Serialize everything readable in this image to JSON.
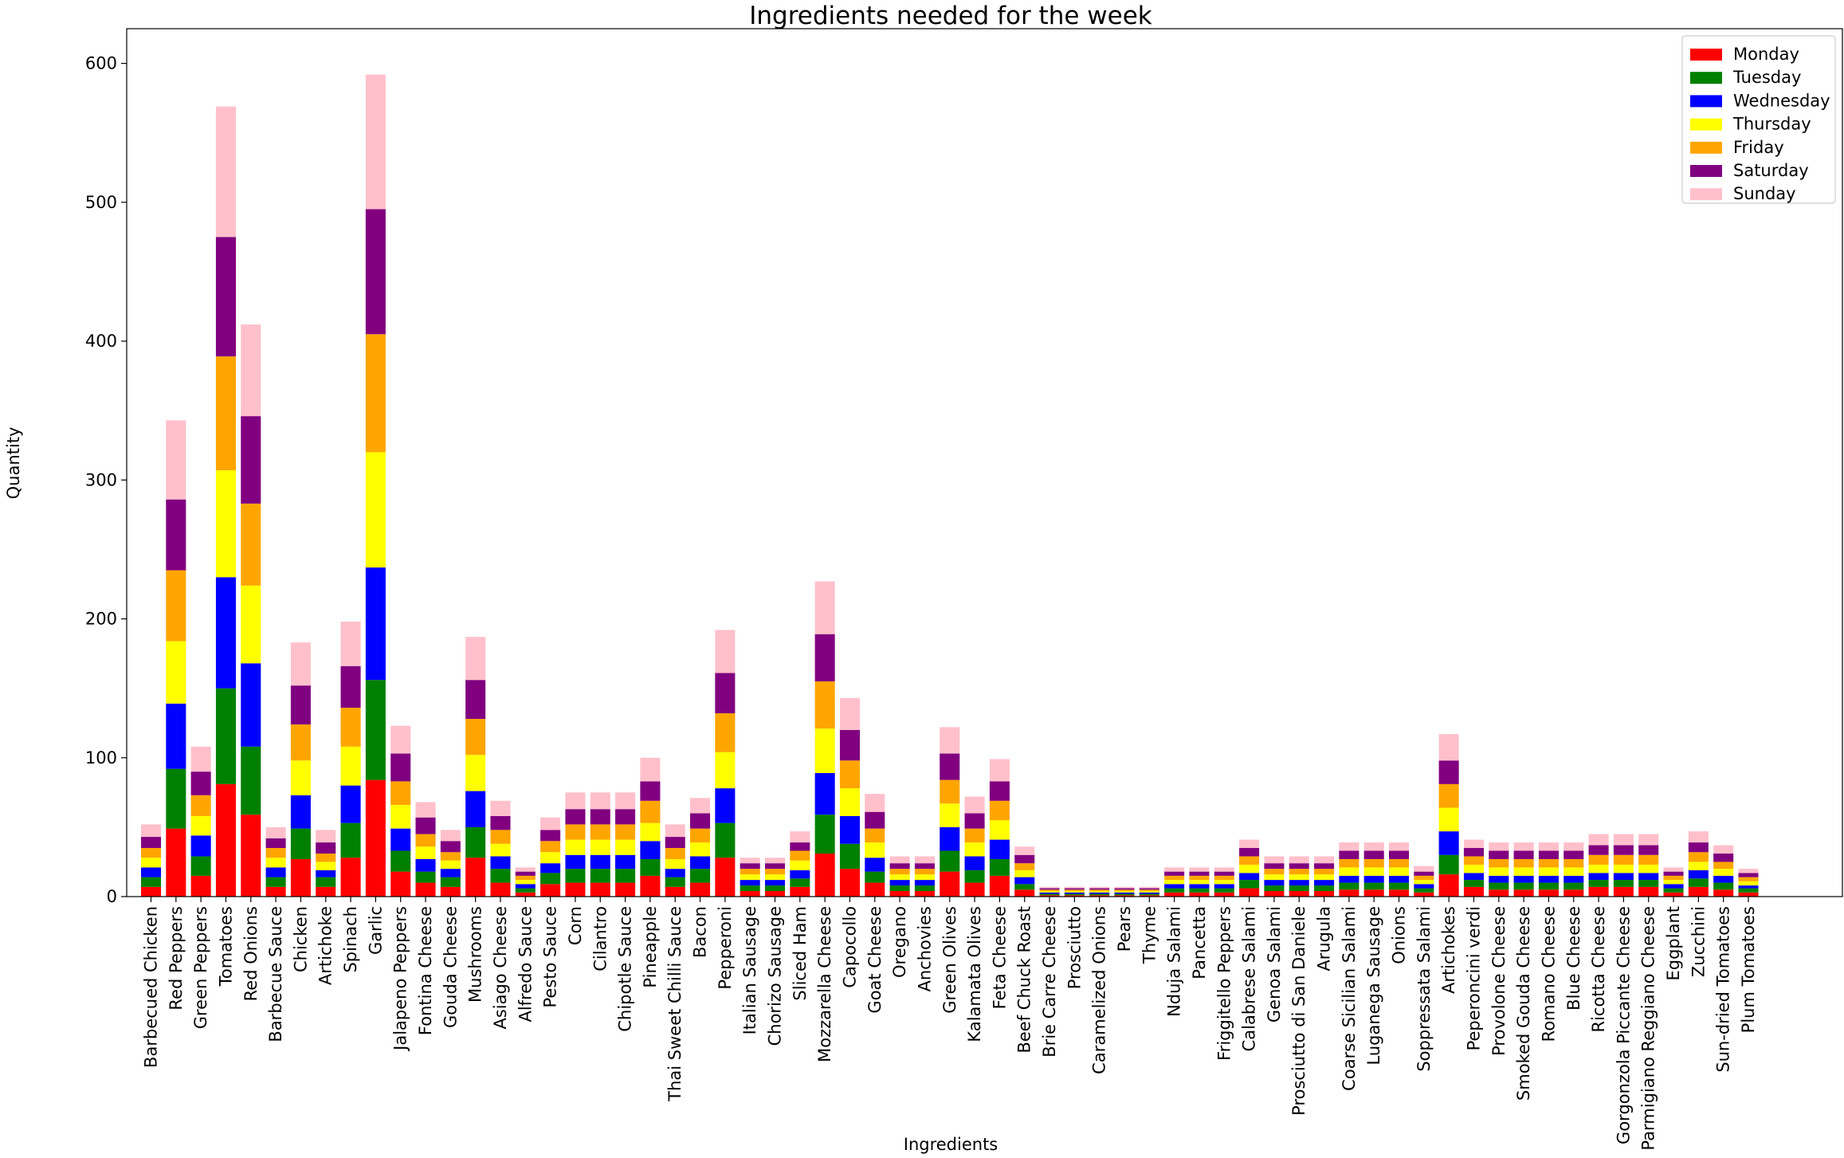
{
  "chart_data": {
    "type": "bar",
    "stacked": true,
    "title": "Ingredients needed for the week",
    "xlabel": "Ingredients",
    "ylabel": "Quantity",
    "ylim": [
      0,
      625
    ],
    "yticks": [
      0,
      100,
      200,
      300,
      400,
      500,
      600
    ],
    "grid": false,
    "legend_position": "top-right",
    "categories": [
      "Barbecued Chicken",
      "Red Peppers",
      "Green Peppers",
      "Tomatoes",
      "Red Onions",
      "Barbecue Sauce",
      "Chicken",
      "Artichoke",
      "Spinach",
      "Garlic",
      "Jalapeno Peppers",
      "Fontina Cheese",
      "Gouda Cheese",
      "Mushrooms",
      "Asiago Cheese",
      "Alfredo Sauce",
      "Pesto Sauce",
      "Corn",
      "Cilantro",
      "Chipotle Sauce",
      "Pineapple",
      "Thai Sweet Chilli Sauce",
      "Bacon",
      "Pepperoni",
      "Italian Sausage",
      "Chorizo Sausage",
      "Sliced Ham",
      "Mozzarella Cheese",
      "Capocollo",
      "Goat Cheese",
      "Oregano",
      "Anchovies",
      "Green Olives",
      "Kalamata Olives",
      "Feta Cheese",
      "Beef Chuck Roast",
      "Brie Carre Cheese",
      "Prosciutto",
      "Caramelized Onions",
      "Pears",
      "Thyme",
      "Nduja Salami",
      "Pancetta",
      "Friggitello Peppers",
      "Calabrese Salami",
      "Genoa Salami",
      "Prosciutto di San Daniele",
      "Arugula",
      "Coarse Sicilian Salami",
      "Luganega Sausage",
      "Onions",
      "Soppressata Salami",
      "Artichokes",
      "Peperoncini verdi",
      "Provolone Cheese",
      "Smoked Gouda Cheese",
      "Romano Cheese",
      "Blue Cheese",
      "Ricotta Cheese",
      "Gorgonzola Piccante Cheese",
      "Parmigiano Reggiano Cheese",
      "Eggplant",
      "Zucchini",
      "Sun-dried Tomatoes",
      "Plum Tomatoes"
    ],
    "series": [
      {
        "name": "Monday",
        "color": "#ff0000",
        "values": [
          7,
          49,
          15,
          81,
          59,
          7,
          27,
          7,
          28,
          84,
          18,
          10,
          7,
          28,
          10,
          3,
          9,
          10,
          10,
          10,
          15,
          7,
          10,
          28,
          4,
          4,
          7,
          31,
          20,
          10,
          4,
          4,
          18,
          10,
          15,
          5,
          1,
          1,
          1,
          1,
          1,
          3,
          3,
          3,
          6,
          4,
          4,
          4,
          5,
          5,
          5,
          3,
          16,
          7,
          5,
          5,
          5,
          5,
          7,
          7,
          7,
          3,
          7,
          5,
          3
        ]
      },
      {
        "name": "Tuesday",
        "color": "#008000",
        "values": [
          7,
          43,
          14,
          69,
          49,
          7,
          22,
          7,
          25,
          72,
          15,
          8,
          7,
          22,
          10,
          3,
          8,
          10,
          10,
          10,
          12,
          7,
          10,
          25,
          4,
          4,
          6,
          28,
          18,
          8,
          4,
          4,
          15,
          9,
          12,
          4,
          1,
          1,
          1,
          1,
          1,
          3,
          3,
          3,
          6,
          4,
          4,
          4,
          5,
          5,
          5,
          3,
          14,
          5,
          5,
          5,
          5,
          5,
          5,
          5,
          5,
          3,
          6,
          5,
          3
        ]
      },
      {
        "name": "Wednesday",
        "color": "#0000ff",
        "values": [
          7,
          47,
          15,
          80,
          60,
          7,
          24,
          5,
          27,
          81,
          16,
          9,
          6,
          26,
          9,
          3,
          7,
          10,
          10,
          10,
          13,
          6,
          9,
          25,
          4,
          4,
          6,
          30,
          20,
          10,
          4,
          4,
          17,
          10,
          14,
          5,
          1,
          1,
          1,
          1,
          1,
          3,
          3,
          3,
          5,
          4,
          4,
          4,
          5,
          5,
          5,
          3,
          17,
          5,
          5,
          5,
          5,
          5,
          5,
          5,
          5,
          3,
          6,
          5,
          2
        ]
      },
      {
        "name": "Thursday",
        "color": "#ffff00",
        "values": [
          7,
          45,
          14,
          77,
          56,
          7,
          25,
          6,
          28,
          83,
          17,
          9,
          6,
          26,
          9,
          3,
          8,
          11,
          11,
          11,
          13,
          7,
          10,
          26,
          4,
          4,
          7,
          32,
          20,
          11,
          4,
          4,
          17,
          10,
          14,
          5,
          1,
          1,
          1,
          1,
          1,
          3,
          3,
          3,
          6,
          4,
          4,
          4,
          6,
          6,
          6,
          3,
          17,
          6,
          6,
          6,
          6,
          6,
          6,
          6,
          6,
          3,
          6,
          5,
          3
        ]
      },
      {
        "name": "Friday",
        "color": "#ffa500",
        "values": [
          7,
          51,
          15,
          82,
          59,
          7,
          26,
          6,
          28,
          85,
          17,
          9,
          6,
          26,
          10,
          3,
          8,
          11,
          11,
          11,
          16,
          8,
          10,
          28,
          4,
          4,
          7,
          34,
          20,
          10,
          4,
          4,
          17,
          10,
          14,
          5,
          1,
          1,
          1,
          1,
          1,
          3,
          3,
          3,
          6,
          4,
          4,
          4,
          6,
          6,
          6,
          3,
          17,
          6,
          6,
          6,
          6,
          6,
          7,
          7,
          7,
          3,
          7,
          5,
          3
        ]
      },
      {
        "name": "Saturday",
        "color": "#800080",
        "values": [
          8,
          51,
          17,
          86,
          63,
          7,
          28,
          8,
          30,
          90,
          20,
          12,
          8,
          28,
          10,
          3,
          8,
          11,
          11,
          11,
          14,
          8,
          11,
          29,
          4,
          4,
          6,
          34,
          22,
          12,
          4,
          4,
          19,
          11,
          14,
          6,
          1,
          1,
          1,
          1,
          1,
          3,
          3,
          3,
          6,
          4,
          4,
          4,
          6,
          6,
          6,
          3,
          17,
          6,
          6,
          6,
          6,
          6,
          7,
          7,
          7,
          3,
          7,
          6,
          3
        ]
      },
      {
        "name": "Sunday",
        "color": "#ffc0cb",
        "values": [
          9,
          57,
          18,
          94,
          66,
          8,
          31,
          9,
          32,
          97,
          20,
          11,
          8,
          31,
          11,
          3,
          9,
          12,
          12,
          12,
          17,
          9,
          11,
          31,
          4,
          4,
          8,
          38,
          23,
          13,
          5,
          5,
          19,
          12,
          16,
          6,
          1,
          1,
          1,
          1,
          1,
          3,
          3,
          3,
          6,
          5,
          5,
          5,
          6,
          6,
          6,
          4,
          19,
          6,
          6,
          6,
          6,
          6,
          8,
          8,
          8,
          3,
          8,
          6,
          3
        ]
      }
    ]
  }
}
